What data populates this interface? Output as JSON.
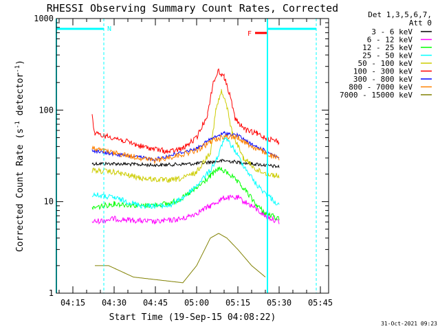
{
  "chart_data": {
    "type": "line",
    "title": "RHESSI Observing Summary Count Rates, Corrected",
    "xlabel": "Start Time (19-Sep-15 04:08:22)",
    "ylabel_main": "Corrected Count Rate (s",
    "ylabel_sup1": "-1",
    "ylabel_mid": " detector",
    "ylabel_sup2": "-1",
    "ylabel_end": ")",
    "y_scale": "log",
    "ylim": [
      1,
      1000
    ],
    "y_ticks": [
      {
        "value": 1,
        "label": "1"
      },
      {
        "value": 10,
        "label": "10"
      },
      {
        "value": 100,
        "label": "100"
      },
      {
        "value": 1000,
        "label": "1000"
      }
    ],
    "xlim_minutes": [
      "04:09",
      "05:48"
    ],
    "x_ticks": [
      {
        "time": "04:15",
        "label": "04:15"
      },
      {
        "time": "04:30",
        "label": "04:30"
      },
      {
        "time": "04:45",
        "label": "04:45"
      },
      {
        "time": "05:00",
        "label": "05:00"
      },
      {
        "time": "05:15",
        "label": "05:15"
      },
      {
        "time": "05:30",
        "label": "05:30"
      },
      {
        "time": "05:45",
        "label": "05:45"
      }
    ],
    "legend_header": [
      "Det 1,3,5,6,7,",
      "Att 0"
    ],
    "legend_position": "right",
    "series": [
      {
        "name": "3 - 6 keV",
        "color": "#000000",
        "points": [
          [
            "04:22",
            26
          ],
          [
            "04:30",
            26
          ],
          [
            "04:45",
            25
          ],
          [
            "05:00",
            26
          ],
          [
            "05:05",
            27
          ],
          [
            "05:10",
            28
          ],
          [
            "05:15",
            27
          ],
          [
            "05:20",
            26
          ],
          [
            "05:25",
            25
          ],
          [
            "05:30",
            24
          ]
        ]
      },
      {
        "name": "6 - 12 keV",
        "color": "#ff00ff",
        "points": [
          [
            "04:22",
            6
          ],
          [
            "04:30",
            6.5
          ],
          [
            "04:45",
            6
          ],
          [
            "04:55",
            6.5
          ],
          [
            "05:00",
            7.5
          ],
          [
            "05:05",
            9
          ],
          [
            "05:10",
            11
          ],
          [
            "05:15",
            11
          ],
          [
            "05:20",
            9
          ],
          [
            "05:25",
            7
          ],
          [
            "05:30",
            6
          ]
        ]
      },
      {
        "name": "12 - 25 keV",
        "color": "#00ff00",
        "points": [
          [
            "04:22",
            8.5
          ],
          [
            "04:30",
            9.5
          ],
          [
            "04:40",
            9
          ],
          [
            "04:50",
            9.5
          ],
          [
            "04:55",
            11
          ],
          [
            "05:00",
            14
          ],
          [
            "05:05",
            19
          ],
          [
            "05:08",
            23
          ],
          [
            "05:12",
            20
          ],
          [
            "05:18",
            13
          ],
          [
            "05:22",
            9
          ],
          [
            "05:25",
            7.5
          ],
          [
            "05:30",
            6.5
          ]
        ]
      },
      {
        "name": "25 - 50 keV",
        "color": "#00ffff",
        "points": [
          [
            "04:22",
            12
          ],
          [
            "04:30",
            11
          ],
          [
            "04:40",
            9
          ],
          [
            "04:50",
            9
          ],
          [
            "04:55",
            11
          ],
          [
            "05:00",
            15
          ],
          [
            "05:05",
            22
          ],
          [
            "05:08",
            32
          ],
          [
            "05:10",
            50
          ],
          [
            "05:13",
            40
          ],
          [
            "05:17",
            25
          ],
          [
            "05:22",
            15
          ],
          [
            "05:27",
            11
          ],
          [
            "05:30",
            9
          ]
        ]
      },
      {
        "name": "50 - 100 keV",
        "color": "#cccc00",
        "points": [
          [
            "04:22",
            22
          ],
          [
            "04:30",
            21
          ],
          [
            "04:40",
            18
          ],
          [
            "04:50",
            17
          ],
          [
            "04:55",
            18
          ],
          [
            "05:00",
            21
          ],
          [
            "05:05",
            35
          ],
          [
            "05:07",
            100
          ],
          [
            "05:09",
            160
          ],
          [
            "05:11",
            110
          ],
          [
            "05:13",
            55
          ],
          [
            "05:17",
            30
          ],
          [
            "05:22",
            22
          ],
          [
            "05:26",
            20
          ],
          [
            "05:30",
            19
          ]
        ]
      },
      {
        "name": "100 - 300 keV",
        "color": "#ff0000",
        "points": [
          [
            "04:22",
            85
          ],
          [
            "04:23",
            55
          ],
          [
            "04:30",
            50
          ],
          [
            "04:40",
            40
          ],
          [
            "04:50",
            35
          ],
          [
            "04:55",
            38
          ],
          [
            "05:00",
            50
          ],
          [
            "05:04",
            90
          ],
          [
            "05:06",
            200
          ],
          [
            "05:08",
            270
          ],
          [
            "05:10",
            230
          ],
          [
            "05:12",
            150
          ],
          [
            "05:14",
            80
          ],
          [
            "05:18",
            60
          ],
          [
            "05:22",
            55
          ],
          [
            "05:25",
            50
          ],
          [
            "05:30",
            45
          ]
        ]
      },
      {
        "name": "300 - 800 keV",
        "color": "#0000ff",
        "points": [
          [
            "04:22",
            36
          ],
          [
            "04:30",
            33
          ],
          [
            "04:45",
            29
          ],
          [
            "05:00",
            38
          ],
          [
            "05:05",
            48
          ],
          [
            "05:10",
            56
          ],
          [
            "05:15",
            53
          ],
          [
            "05:20",
            42
          ],
          [
            "05:25",
            36
          ],
          [
            "05:30",
            30
          ]
        ]
      },
      {
        "name": "800 - 7000 keV",
        "color": "#ff8000",
        "points": [
          [
            "04:22",
            38
          ],
          [
            "04:30",
            34
          ],
          [
            "04:45",
            28
          ],
          [
            "05:00",
            36
          ],
          [
            "05:05",
            45
          ],
          [
            "05:10",
            52
          ],
          [
            "05:15",
            50
          ],
          [
            "05:20",
            40
          ],
          [
            "05:25",
            34
          ],
          [
            "05:30",
            29
          ]
        ]
      },
      {
        "name": "7000 - 15000 keV",
        "color": "#808000",
        "points": [
          [
            "04:23",
            2
          ],
          [
            "04:28",
            2
          ],
          [
            "04:37",
            1.5
          ],
          [
            "04:55",
            1.3
          ],
          [
            "05:00",
            2
          ],
          [
            "05:05",
            4
          ],
          [
            "05:08",
            4.5
          ],
          [
            "05:11",
            4
          ],
          [
            "05:15",
            3
          ],
          [
            "05:20",
            2
          ],
          [
            "05:25",
            1.5
          ]
        ]
      }
    ],
    "annotations": {
      "bar_left_label": "N",
      "bar_right_label": "F",
      "footer_date": "31-Oct-2021 09:23"
    }
  }
}
